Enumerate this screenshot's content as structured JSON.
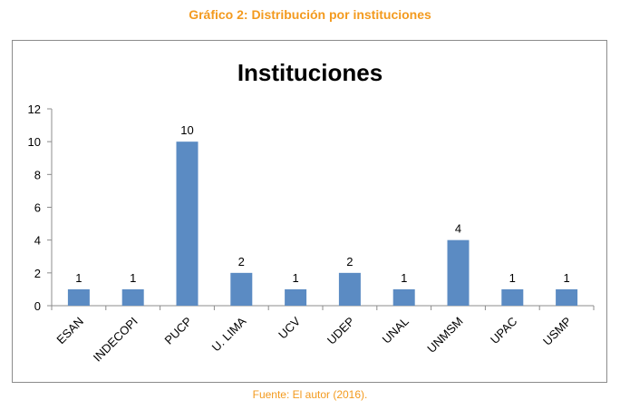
{
  "caption": {
    "title": "Gráfico 2: Distribución por instituciones",
    "source": "Fuente: El autor (2016)."
  },
  "colors": {
    "caption": "#F39A1E",
    "bar": "#5B8BC3"
  },
  "chart_data": {
    "type": "bar",
    "title": "Instituciones",
    "xlabel": "",
    "ylabel": "",
    "categories": [
      "ESAN",
      "INDECOPI",
      "PUCP",
      "U. LIMA",
      "UCV",
      "UDEP",
      "UNAL",
      "UNMSM",
      "UPAC",
      "USMP"
    ],
    "values": [
      1,
      1,
      10,
      2,
      1,
      2,
      1,
      4,
      1,
      1
    ],
    "ylim": [
      0,
      12
    ],
    "yticks": [
      "0",
      "2",
      "4",
      "6",
      "8",
      "10",
      "12"
    ],
    "data_labels": true,
    "grid": false,
    "legend": "none"
  }
}
